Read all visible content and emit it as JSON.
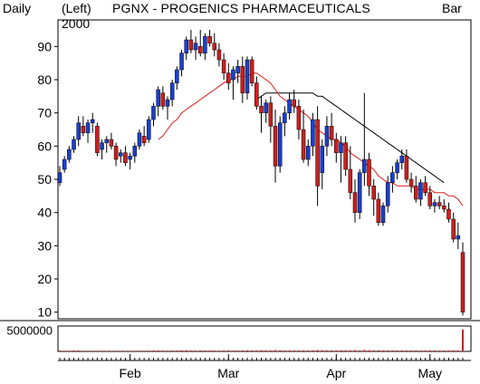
{
  "header": {
    "period": "Daily",
    "scale": "(Left)",
    "year": "2000",
    "title": "PGNX - PROGENICS PHARMACEUTICALS",
    "style": "Bar"
  },
  "colors": {
    "up": "#1a3fd0",
    "down": "#d01e1e",
    "ma_short": "#e01b1b",
    "ma_long": "#000000",
    "volume_bar": "#e01b1b"
  },
  "chart_data": {
    "type": "candlestick",
    "title": "PGNX - PROGENICS PHARMACEUTICALS",
    "x_tick_labels": [
      "Feb",
      "Mar",
      "Apr",
      "May"
    ],
    "x_tick_dates": [
      "2000-02-01",
      "2000-03-01",
      "2000-04-03",
      "2000-05-01"
    ],
    "y_ticks": [
      10,
      20,
      30,
      40,
      50,
      60,
      70,
      80,
      90
    ],
    "ylim": [
      8,
      98
    ],
    "volume_tick": "5000000",
    "volume_ylim": [
      0,
      6000000
    ],
    "series": [
      {
        "kind": "ohlc",
        "values": [
          [
            49,
            54,
            48,
            52
          ],
          [
            53,
            57,
            52,
            56
          ],
          [
            56,
            60,
            55,
            59
          ],
          [
            59,
            63,
            58,
            62
          ],
          [
            62,
            69,
            60,
            67
          ],
          [
            66,
            69,
            63,
            64
          ],
          [
            64,
            68,
            61,
            67
          ],
          [
            67,
            70,
            64,
            68
          ],
          [
            66,
            67,
            57,
            58
          ],
          [
            59,
            62,
            56,
            61
          ],
          [
            61,
            63,
            58,
            62
          ],
          [
            62,
            64,
            59,
            60
          ],
          [
            60,
            61,
            54,
            56
          ],
          [
            57,
            59,
            55,
            58
          ],
          [
            58,
            60,
            54,
            55
          ],
          [
            56,
            58,
            53,
            57
          ],
          [
            57,
            61,
            55,
            60
          ],
          [
            60,
            65,
            59,
            64
          ],
          [
            63,
            66,
            60,
            61
          ],
          [
            62,
            69,
            61,
            68
          ],
          [
            68,
            73,
            66,
            72
          ],
          [
            72,
            78,
            69,
            77
          ],
          [
            76,
            78,
            71,
            72
          ],
          [
            72,
            75,
            68,
            74
          ],
          [
            74,
            80,
            72,
            79
          ],
          [
            79,
            84,
            77,
            83
          ],
          [
            83,
            89,
            81,
            88
          ],
          [
            88,
            93,
            86,
            92
          ],
          [
            92,
            95,
            88,
            89
          ],
          [
            89,
            93,
            86,
            91
          ],
          [
            90,
            95,
            87,
            88
          ],
          [
            88,
            94,
            86,
            93
          ],
          [
            93,
            95,
            90,
            91
          ],
          [
            91,
            94,
            87,
            89
          ],
          [
            89,
            91,
            84,
            86
          ],
          [
            86,
            88,
            80,
            82
          ],
          [
            82,
            85,
            77,
            79
          ],
          [
            80,
            84,
            74,
            83
          ],
          [
            82,
            86,
            79,
            84
          ],
          [
            84,
            87,
            73,
            76
          ],
          [
            76,
            87,
            74,
            86
          ],
          [
            86,
            87,
            78,
            79
          ],
          [
            79,
            81,
            71,
            72
          ],
          [
            72,
            75,
            64,
            70
          ],
          [
            70,
            74,
            67,
            73
          ],
          [
            73,
            75,
            61,
            66
          ],
          [
            66,
            71,
            49,
            54
          ],
          [
            54,
            69,
            52,
            67
          ],
          [
            67,
            72,
            63,
            70
          ],
          [
            70,
            76,
            68,
            74
          ],
          [
            74,
            77,
            70,
            72
          ],
          [
            72,
            74,
            62,
            65
          ],
          [
            65,
            71,
            55,
            56
          ],
          [
            56,
            62,
            54,
            60
          ],
          [
            60,
            70,
            57,
            68
          ],
          [
            68,
            72,
            42,
            48
          ],
          [
            52,
            62,
            47,
            60
          ],
          [
            60,
            69,
            57,
            66
          ],
          [
            66,
            70,
            60,
            62
          ],
          [
            62,
            64,
            55,
            58
          ],
          [
            58,
            63,
            49,
            61
          ],
          [
            61,
            63,
            51,
            53
          ],
          [
            53,
            60,
            44,
            46
          ],
          [
            46,
            50,
            37,
            40
          ],
          [
            40,
            53,
            38,
            52
          ],
          [
            52,
            76,
            48,
            56
          ],
          [
            56,
            58,
            45,
            48
          ],
          [
            48,
            50,
            39,
            44
          ],
          [
            44,
            46,
            36,
            37
          ],
          [
            37,
            43,
            36,
            42
          ],
          [
            42,
            51,
            40,
            49
          ],
          [
            49,
            54,
            46,
            52
          ],
          [
            52,
            56,
            50,
            55
          ],
          [
            55,
            59,
            53,
            57
          ],
          [
            57,
            59,
            49,
            50
          ],
          [
            50,
            52,
            46,
            48
          ],
          [
            48,
            51,
            43,
            44
          ],
          [
            44,
            50,
            42,
            49
          ],
          [
            49,
            51,
            45,
            46
          ],
          [
            46,
            48,
            41,
            42
          ],
          [
            42,
            44,
            40,
            43
          ],
          [
            43,
            45,
            41,
            42
          ],
          [
            42,
            44,
            40,
            41
          ],
          [
            41,
            43,
            37,
            38
          ],
          [
            38,
            40,
            31,
            32
          ],
          [
            32,
            37,
            29,
            33
          ],
          [
            28,
            31,
            9,
            10
          ]
        ]
      },
      {
        "kind": "ma_short",
        "values": [
          null,
          null,
          null,
          null,
          null,
          null,
          null,
          null,
          null,
          null,
          null,
          null,
          null,
          null,
          null,
          null,
          null,
          null,
          null,
          null,
          null,
          62,
          63,
          65,
          67,
          68,
          70,
          71,
          72,
          73,
          74,
          75,
          76,
          77,
          78,
          79,
          80,
          80,
          81,
          81,
          81,
          82,
          82,
          81,
          80,
          79,
          77,
          75,
          74,
          73,
          72,
          71,
          70,
          69,
          67,
          65,
          64,
          63,
          62,
          62,
          61,
          60,
          58,
          57,
          56,
          55,
          54,
          53,
          51,
          50,
          49,
          49,
          48,
          48,
          48,
          48,
          47,
          47,
          47,
          47,
          46,
          46,
          46,
          45,
          45,
          44,
          42
        ]
      },
      {
        "kind": "ma_long",
        "values": [
          null,
          null,
          null,
          null,
          null,
          null,
          null,
          null,
          null,
          null,
          null,
          null,
          null,
          null,
          null,
          null,
          null,
          null,
          null,
          null,
          null,
          null,
          null,
          null,
          null,
          null,
          null,
          null,
          null,
          null,
          null,
          null,
          null,
          null,
          null,
          null,
          null,
          null,
          null,
          null,
          null,
          null,
          74,
          75,
          76,
          76,
          76,
          76,
          76,
          76,
          76,
          76,
          76,
          76,
          76,
          75,
          75,
          74,
          73,
          72,
          71,
          70,
          69,
          68,
          67,
          66,
          65,
          64,
          63,
          62,
          61,
          60,
          59,
          58,
          57,
          56,
          55,
          54,
          53,
          52,
          51,
          50,
          49
        ]
      },
      {
        "kind": "volume",
        "values": [
          180000,
          160000,
          150000,
          200000,
          220000,
          170000,
          140000,
          160000,
          150000,
          130000,
          120000,
          140000,
          160000,
          150000,
          130000,
          120000,
          140000,
          170000,
          150000,
          180000,
          200000,
          230000,
          190000,
          170000,
          210000,
          240000,
          260000,
          280000,
          220000,
          200000,
          230000,
          210000,
          190000,
          200000,
          180000,
          210000,
          240000,
          200000,
          190000,
          230000,
          260000,
          210000,
          240000,
          280000,
          230000,
          250000,
          320000,
          260000,
          220000,
          240000,
          210000,
          230000,
          270000,
          240000,
          250000,
          330000,
          280000,
          260000,
          230000,
          240000,
          260000,
          250000,
          270000,
          300000,
          260000,
          340000,
          280000,
          260000,
          270000,
          240000,
          250000,
          230000,
          220000,
          240000,
          210000,
          220000,
          230000,
          200000,
          210000,
          220000,
          200000,
          190000,
          210000,
          230000,
          260000,
          250000,
          5200000
        ]
      }
    ]
  }
}
